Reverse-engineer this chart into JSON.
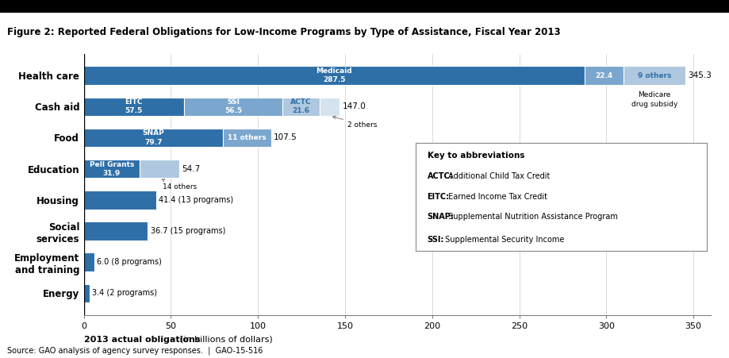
{
  "title": "Figure 2: Reported Federal Obligations for Low-Income Programs by Type of Assistance, Fiscal Year 2013",
  "xlabel_bold": "2013 actual obligations",
  "xlabel_regular": " (in billions of dollars)",
  "source": "Source: GAO analysis of agency survey responses.  |  GAO-15-516",
  "xlim": [
    0,
    360
  ],
  "xticks": [
    0,
    50,
    100,
    150,
    200,
    250,
    300,
    350
  ],
  "categories": [
    "Energy",
    "Employment\nand training",
    "Social\nservices",
    "Housing",
    "Education",
    "Food",
    "Cash aid",
    "Health care"
  ],
  "background_color": "#ffffff",
  "bar_height": 0.6,
  "dark_blue": "#2E6FA8",
  "medium_blue": "#7BA7CE",
  "light_blue": "#AFC8DF",
  "very_light_blue": "#D4E3EF",
  "bars": {
    "Health care": [
      {
        "value": 287.5,
        "color": "#2E6FA8",
        "label": "Medicaid\n287.5",
        "label_color": "white"
      },
      {
        "value": 22.4,
        "color": "#7BA7CE",
        "label": "22.4",
        "label_color": "white"
      },
      {
        "value": 35.4,
        "color": "#AFC8DF",
        "label": "9 others",
        "label_color": "#2E6FA8"
      }
    ],
    "Cash aid": [
      {
        "value": 57.5,
        "color": "#2E6FA8",
        "label": "EITC\n57.5",
        "label_color": "white"
      },
      {
        "value": 56.5,
        "color": "#7BA7CE",
        "label": "SSI\n56.5",
        "label_color": "white"
      },
      {
        "value": 21.6,
        "color": "#AFC8DF",
        "label": "ACTC\n21.6",
        "label_color": "#2E6FA8"
      },
      {
        "value": 11.4,
        "color": "#D4E3EF",
        "label": "",
        "label_color": "white"
      }
    ],
    "Food": [
      {
        "value": 79.7,
        "color": "#2E6FA8",
        "label": "SNAP\n79.7",
        "label_color": "white"
      },
      {
        "value": 27.8,
        "color": "#7BA7CE",
        "label": "11 others",
        "label_color": "white"
      }
    ],
    "Education": [
      {
        "value": 31.9,
        "color": "#2E6FA8",
        "label": "Pell Grants\n31.9",
        "label_color": "white"
      },
      {
        "value": 22.8,
        "color": "#AFC8DF",
        "label": "",
        "label_color": "white"
      }
    ],
    "Housing": [
      {
        "value": 41.4,
        "color": "#2E6FA8",
        "label": "",
        "label_color": "white"
      }
    ],
    "Social\nservices": [
      {
        "value": 36.7,
        "color": "#2E6FA8",
        "label": "",
        "label_color": "white"
      }
    ],
    "Employment\nand training": [
      {
        "value": 6.0,
        "color": "#2E6FA8",
        "label": "",
        "label_color": "white"
      }
    ],
    "Energy": [
      {
        "value": 3.4,
        "color": "#2E6FA8",
        "label": "",
        "label_color": "white"
      }
    ]
  },
  "key_box": {
    "title": "Key to abbreviations",
    "entries": [
      {
        "bold": "ACTC:",
        "regular": " Additional Child Tax Credit"
      },
      {
        "bold": "EITC:",
        "regular": " Earned Income Tax Credit"
      },
      {
        "bold": "SNAP:",
        "regular": " Supplemental Nutrition Assistance Program"
      },
      {
        "bold": "SSI:",
        "regular": " Supplemental Security Income"
      }
    ]
  }
}
